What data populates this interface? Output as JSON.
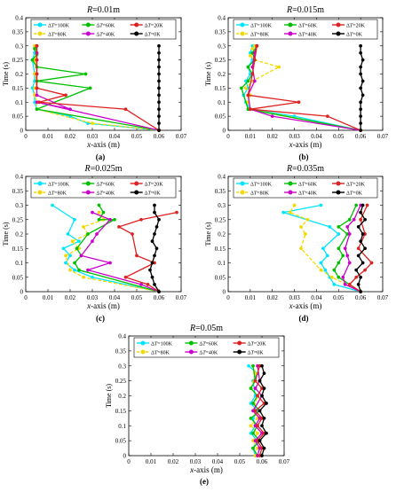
{
  "legend_entries": [
    "ΔT=100K",
    "ΔT=60K",
    "ΔT=20K",
    "ΔT=80K",
    "ΔT=40K",
    "ΔT=0K"
  ],
  "chart_data": [
    {
      "type": "line",
      "panel_label": "(a)",
      "title": "R=0.01m",
      "xlabel": "x-axis (m)",
      "ylabel": "Time (s)",
      "xlim": [
        0,
        0.07
      ],
      "ylim": [
        0,
        0.4
      ],
      "xticks": [
        "0",
        "0.01",
        "0.02",
        "0.03",
        "0.04",
        "0.05",
        "0.06",
        "0.07"
      ],
      "yticks": [
        "0",
        "0.05",
        "0.1",
        "0.15",
        "0.2",
        "0.25",
        "0.3",
        "0.35",
        "0.4"
      ],
      "legend": "top",
      "series": [
        {
          "name": "ΔT=100K",
          "color": "#00e5ff",
          "dashed": false,
          "x": [
            0.06,
            0.028,
            0.02,
            0.005,
            0.004,
            0.004,
            0.003,
            0.004,
            0.004,
            0.003,
            0.004,
            0.004
          ],
          "y": [
            0,
            0.025,
            0.05,
            0.075,
            0.1,
            0.125,
            0.15,
            0.175,
            0.2,
            0.25,
            0.275,
            0.3
          ]
        },
        {
          "name": "ΔT=80K",
          "color": "#f5d800",
          "dashed": true,
          "x": [
            0.06,
            0.03,
            0.005,
            0.005,
            0.004,
            0.004,
            0.005,
            0.004,
            0.005,
            0.004,
            0.005,
            0.004
          ],
          "y": [
            0,
            0.025,
            0.075,
            0.1,
            0.125,
            0.15,
            0.175,
            0.2,
            0.225,
            0.25,
            0.275,
            0.3
          ]
        },
        {
          "name": "ΔT=60K",
          "color": "#00c000",
          "dashed": false,
          "x": [
            0.06,
            0.005,
            0.029,
            0.005,
            0.027,
            0.005,
            0.003,
            0.005,
            0.004,
            0.005
          ],
          "y": [
            0,
            0.075,
            0.15,
            0.175,
            0.2,
            0.225,
            0.25,
            0.27,
            0.29,
            0.3
          ]
        },
        {
          "name": "ΔT=40K",
          "color": "#cc00cc",
          "dashed": false,
          "x": [
            0.06,
            0.005,
            0.02,
            0.005,
            0.005,
            0.005,
            0.005,
            0.005,
            0.005
          ],
          "y": [
            0,
            0.1,
            0.075,
            0.125,
            0.15,
            0.2,
            0.25,
            0.275,
            0.3
          ]
        },
        {
          "name": "ΔT=20K",
          "color": "#dd2222",
          "dashed": false,
          "x": [
            0.06,
            0.045,
            0.006,
            0.018,
            0.005,
            0.005,
            0.005,
            0.005
          ],
          "y": [
            0,
            0.075,
            0.1,
            0.125,
            0.15,
            0.2,
            0.25,
            0.3
          ]
        },
        {
          "name": "ΔT=0K",
          "color": "#000000",
          "dashed": false,
          "x": [
            0.06,
            0.06,
            0.06,
            0.06,
            0.06,
            0.06,
            0.06,
            0.06,
            0.06,
            0.06,
            0.06,
            0.06,
            0.06
          ],
          "y": [
            0,
            0.025,
            0.05,
            0.075,
            0.1,
            0.125,
            0.15,
            0.175,
            0.2,
            0.225,
            0.25,
            0.275,
            0.3
          ]
        }
      ]
    },
    {
      "type": "line",
      "panel_label": "(b)",
      "title": "R=0.015m",
      "xlabel": "x-axis (m)",
      "ylabel": "Time (s)",
      "xlim": [
        0,
        0.07
      ],
      "ylim": [
        0,
        0.4
      ],
      "xticks": [
        "0",
        "0.01",
        "0.02",
        "0.03",
        "0.04",
        "0.05",
        "0.06",
        "0.07"
      ],
      "yticks": [
        "0",
        "0.05",
        "0.1",
        "0.15",
        "0.2",
        "0.25",
        "0.3",
        "0.35",
        "0.4"
      ],
      "legend": "top",
      "series": [
        {
          "name": "ΔT=100K",
          "color": "#00e5ff",
          "dashed": false,
          "x": [
            0.06,
            0.03,
            0.01,
            0.008,
            0.007,
            0.009,
            0.008,
            0.01,
            0.009,
            0.011,
            0.01,
            0.011
          ],
          "y": [
            0,
            0.05,
            0.075,
            0.1,
            0.125,
            0.15,
            0.175,
            0.2,
            0.225,
            0.25,
            0.275,
            0.3
          ]
        },
        {
          "name": "ΔT=80K",
          "color": "#f5d800",
          "dashed": true,
          "x": [
            0.06,
            0.01,
            0.009,
            0.01,
            0.008,
            0.011,
            0.023,
            0.012,
            0.01,
            0.012,
            0.011,
            0.012
          ],
          "y": [
            0,
            0.075,
            0.1,
            0.125,
            0.15,
            0.175,
            0.225,
            0.25,
            0.265,
            0.28,
            0.29,
            0.3
          ]
        },
        {
          "name": "ΔT=60K",
          "color": "#00c000",
          "dashed": false,
          "x": [
            0.06,
            0.009,
            0.006,
            0.009,
            0.011,
            0.009,
            0.012,
            0.011,
            0.013
          ],
          "y": [
            0,
            0.075,
            0.15,
            0.175,
            0.2,
            0.225,
            0.25,
            0.275,
            0.3
          ]
        },
        {
          "name": "ΔT=40K",
          "color": "#cc00cc",
          "dashed": false,
          "x": [
            0.06,
            0.02,
            0.01,
            0.009,
            0.012,
            0.011,
            0.012,
            0.013
          ],
          "y": [
            0,
            0.05,
            0.075,
            0.125,
            0.175,
            0.225,
            0.275,
            0.3
          ]
        },
        {
          "name": "ΔT=20K",
          "color": "#dd2222",
          "dashed": false,
          "x": [
            0.06,
            0.045,
            0.01,
            0.032,
            0.009,
            0.011,
            0.012,
            0.013
          ],
          "y": [
            0,
            0.05,
            0.075,
            0.1,
            0.125,
            0.2,
            0.25,
            0.3
          ]
        },
        {
          "name": "ΔT=0K",
          "color": "#000000",
          "dashed": false,
          "x": [
            0.06,
            0.06,
            0.06,
            0.06,
            0.06,
            0.061,
            0.06,
            0.061,
            0.06,
            0.06,
            0.061,
            0.06,
            0.06
          ],
          "y": [
            0,
            0.025,
            0.05,
            0.075,
            0.1,
            0.125,
            0.15,
            0.175,
            0.2,
            0.225,
            0.25,
            0.275,
            0.3
          ]
        }
      ]
    },
    {
      "type": "line",
      "panel_label": "(c)",
      "title": "R=0.025m",
      "xlabel": "x-axis (m)",
      "ylabel": "Time (s)",
      "xlim": [
        0,
        0.07
      ],
      "ylim": [
        0,
        0.4
      ],
      "xticks": [
        "0",
        "0.01",
        "0.02",
        "0.03",
        "0.04",
        "0.05",
        "0.06",
        "0.07"
      ],
      "yticks": [
        "0",
        "0.05",
        "0.1",
        "0.15",
        "0.2",
        "0.25",
        "0.3",
        "0.35",
        "0.4"
      ],
      "legend": "top",
      "series": [
        {
          "name": "ΔT=100K",
          "color": "#00e5ff",
          "dashed": false,
          "x": [
            0.06,
            0.03,
            0.022,
            0.018,
            0.02,
            0.017,
            0.024,
            0.019,
            0.022,
            0.012
          ],
          "y": [
            0,
            0.05,
            0.075,
            0.1,
            0.125,
            0.15,
            0.175,
            0.2,
            0.25,
            0.3
          ]
        },
        {
          "name": "ΔT=80K",
          "color": "#f5d800",
          "dashed": true,
          "x": [
            0.06,
            0.026,
            0.02,
            0.018,
            0.024,
            0.021,
            0.028,
            0.026,
            0.035,
            0.033
          ],
          "y": [
            0,
            0.05,
            0.075,
            0.125,
            0.15,
            0.175,
            0.2,
            0.225,
            0.25,
            0.275
          ]
        },
        {
          "name": "ΔT=60K",
          "color": "#00c000",
          "dashed": false,
          "x": [
            0.06,
            0.024,
            0.022,
            0.025,
            0.023,
            0.028,
            0.04,
            0.033,
            0.035,
            0.033
          ],
          "y": [
            0,
            0.075,
            0.1,
            0.125,
            0.15,
            0.2,
            0.25,
            0.25,
            0.275,
            0.3
          ]
        },
        {
          "name": "ΔT=40K",
          "color": "#cc00cc",
          "dashed": false,
          "x": [
            0.06,
            0.052,
            0.028,
            0.038,
            0.025,
            0.03,
            0.032,
            0.038,
            0.03
          ],
          "y": [
            0,
            0.025,
            0.075,
            0.1,
            0.125,
            0.175,
            0.2,
            0.25,
            0.275
          ]
        },
        {
          "name": "ΔT=20K",
          "color": "#dd2222",
          "dashed": false,
          "x": [
            0.06,
            0.055,
            0.045,
            0.058,
            0.05,
            0.048,
            0.042,
            0.052,
            0.068
          ],
          "y": [
            0,
            0.025,
            0.05,
            0.1,
            0.125,
            0.2,
            0.225,
            0.25,
            0.275
          ]
        },
        {
          "name": "ΔT=0K",
          "color": "#000000",
          "dashed": false,
          "x": [
            0.06,
            0.058,
            0.057,
            0.056,
            0.057,
            0.058,
            0.059,
            0.057,
            0.058,
            0.059,
            0.06,
            0.058,
            0.058
          ],
          "y": [
            0,
            0.025,
            0.05,
            0.075,
            0.1,
            0.125,
            0.15,
            0.175,
            0.2,
            0.225,
            0.25,
            0.275,
            0.3
          ]
        }
      ]
    },
    {
      "type": "line",
      "panel_label": "(d)",
      "title": "R=0.035m",
      "xlabel": "x-axis (m)",
      "ylabel": "Time (s)",
      "xlim": [
        0,
        0.07
      ],
      "ylim": [
        0,
        0.4
      ],
      "xticks": [
        "0",
        "0.01",
        "0.02",
        "0.03",
        "0.04",
        "0.05",
        "0.06",
        "0.07"
      ],
      "yticks": [
        "0",
        "0.05",
        "0.1",
        "0.15",
        "0.2",
        "0.25",
        "0.3",
        "0.35",
        "0.4"
      ],
      "legend": "top",
      "series": [
        {
          "name": "ΔT=100K",
          "color": "#00e5ff",
          "dashed": false,
          "x": [
            0.06,
            0.048,
            0.046,
            0.044,
            0.042,
            0.045,
            0.043,
            0.05,
            0.046,
            0.025,
            0.042
          ],
          "y": [
            0,
            0.025,
            0.05,
            0.075,
            0.1,
            0.125,
            0.15,
            0.2,
            0.225,
            0.275,
            0.3
          ]
        },
        {
          "name": "ΔT=80K",
          "color": "#f5d800",
          "dashed": true,
          "x": [
            0.06,
            0.047,
            0.042,
            0.033,
            0.035,
            0.033,
            0.036,
            0.028,
            0.03
          ],
          "y": [
            0,
            0.05,
            0.075,
            0.15,
            0.2,
            0.225,
            0.25,
            0.275,
            0.3
          ]
        },
        {
          "name": "ΔT=60K",
          "color": "#00c000",
          "dashed": false,
          "x": [
            0.06,
            0.05,
            0.048,
            0.05,
            0.052,
            0.05,
            0.054,
            0.05,
            0.055,
            0.058
          ],
          "y": [
            0,
            0.05,
            0.075,
            0.1,
            0.125,
            0.15,
            0.2,
            0.225,
            0.25,
            0.3
          ]
        },
        {
          "name": "ΔT=40K",
          "color": "#cc00cc",
          "dashed": false,
          "x": [
            0.06,
            0.053,
            0.052,
            0.055,
            0.054,
            0.053,
            0.055,
            0.054,
            0.057,
            0.06
          ],
          "y": [
            0,
            0.025,
            0.05,
            0.1,
            0.125,
            0.15,
            0.2,
            0.225,
            0.25,
            0.3
          ]
        },
        {
          "name": "ΔT=20K",
          "color": "#dd2222",
          "dashed": false,
          "x": [
            0.06,
            0.055,
            0.058,
            0.062,
            0.065,
            0.059,
            0.062,
            0.06,
            0.063
          ],
          "y": [
            0,
            0.025,
            0.05,
            0.075,
            0.1,
            0.15,
            0.2,
            0.25,
            0.3
          ]
        },
        {
          "name": "ΔT=0K",
          "color": "#000000",
          "dashed": false,
          "x": [
            0.06,
            0.059,
            0.06,
            0.058,
            0.061,
            0.059,
            0.062,
            0.06,
            0.061,
            0.059,
            0.062,
            0.06,
            0.061
          ],
          "y": [
            0,
            0.025,
            0.05,
            0.075,
            0.1,
            0.125,
            0.15,
            0.175,
            0.2,
            0.225,
            0.25,
            0.275,
            0.3
          ]
        }
      ]
    },
    {
      "type": "line",
      "panel_label": "(e)",
      "title": "R=0.05m",
      "xlabel": "x-axis (m)",
      "ylabel": "Time (s)",
      "xlim": [
        0,
        0.07
      ],
      "ylim": [
        0,
        0.4
      ],
      "xticks": [
        "0",
        "0.01",
        "0.02",
        "0.03",
        "0.04",
        "0.05",
        "0.06",
        "0.07"
      ],
      "yticks": [
        "0",
        "0.05",
        "0.1",
        "0.15",
        "0.2",
        "0.25",
        "0.3",
        "0.35",
        "0.4"
      ],
      "legend": "top",
      "series": [
        {
          "name": "ΔT=100K",
          "color": "#00e5ff",
          "dashed": false,
          "x": [
            0.057,
            0.056,
            0.058,
            0.055,
            0.057,
            0.056,
            0.058,
            0.055,
            0.057,
            0.056,
            0.058,
            0.054
          ],
          "y": [
            0,
            0.025,
            0.05,
            0.075,
            0.1,
            0.125,
            0.15,
            0.175,
            0.2,
            0.25,
            0.275,
            0.3
          ]
        },
        {
          "name": "ΔT=80K",
          "color": "#f5d800",
          "dashed": true,
          "x": [
            0.057,
            0.058,
            0.056,
            0.058,
            0.055,
            0.058,
            0.056,
            0.058,
            0.055,
            0.057,
            0.056
          ],
          "y": [
            0,
            0.025,
            0.05,
            0.075,
            0.1,
            0.125,
            0.15,
            0.2,
            0.225,
            0.275,
            0.3
          ]
        },
        {
          "name": "ΔT=60K",
          "color": "#00c000",
          "dashed": false,
          "x": [
            0.058,
            0.056,
            0.059,
            0.056,
            0.058,
            0.055,
            0.059,
            0.056,
            0.058,
            0.055,
            0.057,
            0.056
          ],
          "y": [
            0,
            0.025,
            0.05,
            0.075,
            0.1,
            0.125,
            0.15,
            0.175,
            0.2,
            0.225,
            0.25,
            0.3
          ]
        },
        {
          "name": "ΔT=40K",
          "color": "#cc00cc",
          "dashed": false,
          "x": [
            0.058,
            0.059,
            0.057,
            0.06,
            0.057,
            0.059,
            0.056,
            0.06,
            0.057,
            0.059,
            0.058
          ],
          "y": [
            0,
            0.025,
            0.05,
            0.075,
            0.1,
            0.125,
            0.15,
            0.2,
            0.225,
            0.25,
            0.3
          ]
        },
        {
          "name": "ΔT=20K",
          "color": "#dd2222",
          "dashed": false,
          "x": [
            0.059,
            0.06,
            0.058,
            0.061,
            0.058,
            0.06,
            0.057,
            0.061,
            0.058,
            0.06,
            0.057,
            0.059
          ],
          "y": [
            0,
            0.025,
            0.05,
            0.075,
            0.1,
            0.125,
            0.15,
            0.175,
            0.2,
            0.225,
            0.25,
            0.3
          ]
        },
        {
          "name": "ΔT=0K",
          "color": "#000000",
          "dashed": false,
          "x": [
            0.06,
            0.061,
            0.059,
            0.062,
            0.06,
            0.061,
            0.059,
            0.062,
            0.06,
            0.061,
            0.059,
            0.061,
            0.06
          ],
          "y": [
            0,
            0.025,
            0.05,
            0.075,
            0.1,
            0.125,
            0.15,
            0.175,
            0.2,
            0.225,
            0.25,
            0.275,
            0.3
          ]
        }
      ]
    }
  ]
}
